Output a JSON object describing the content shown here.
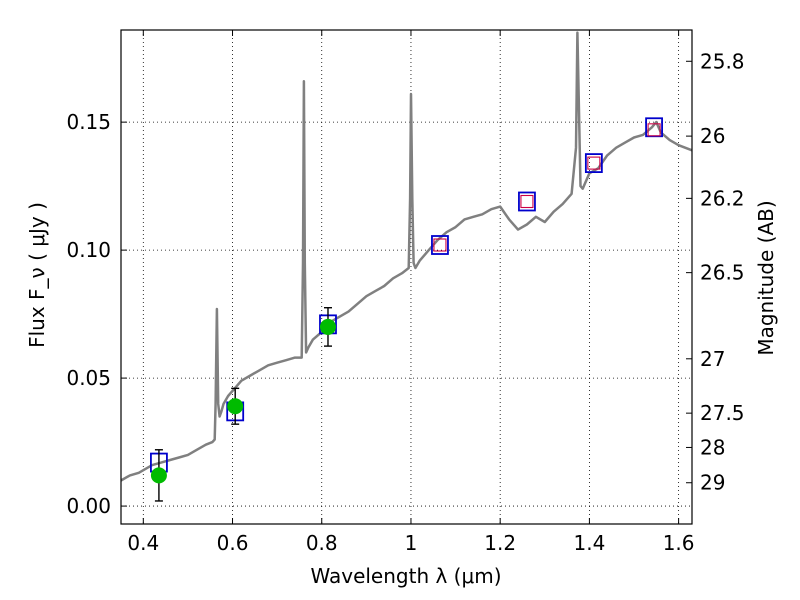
{
  "chart_data": {
    "type": "line",
    "xlabel": "Wavelength  λ (μm)",
    "ylabel": "Flux  F_ν  ( μJy )",
    "ylabel_right": "Magnitude (AB)",
    "xlim": [
      0.35,
      1.63
    ],
    "ylim": [
      -0.007,
      0.186
    ],
    "grid": true,
    "x_ticks": [
      0.4,
      0.6,
      0.8,
      1.0,
      1.2,
      1.4,
      1.6
    ],
    "x_tick_labels": [
      "0.4",
      "0.6",
      "0.8",
      "1",
      "1.2",
      "1.4",
      "1.6"
    ],
    "y_ticks": [
      0.0,
      0.05,
      0.1,
      0.15
    ],
    "y_tick_labels": [
      "0.00",
      "0.05",
      "0.10",
      "0.15"
    ],
    "mag_ticks": [
      25.8,
      26,
      26.2,
      26.5,
      27,
      27.5,
      28,
      29
    ],
    "mag_tick_labels": [
      "25.8",
      "26",
      "26.2",
      "26.5",
      "27",
      "27.5",
      "28",
      "29"
    ],
    "series": [
      {
        "kind": "model_spectrum",
        "color": "#808080",
        "x": [
          0.35,
          0.37,
          0.39,
          0.4,
          0.42,
          0.44,
          0.46,
          0.48,
          0.5,
          0.52,
          0.54,
          0.555,
          0.56,
          0.562,
          0.565,
          0.568,
          0.571,
          0.575,
          0.58,
          0.59,
          0.6,
          0.62,
          0.64,
          0.66,
          0.68,
          0.7,
          0.72,
          0.74,
          0.755,
          0.758,
          0.76,
          0.762,
          0.765,
          0.77,
          0.78,
          0.8,
          0.82,
          0.84,
          0.86,
          0.88,
          0.9,
          0.92,
          0.94,
          0.96,
          0.98,
          0.995,
          0.998,
          1.0,
          1.003,
          1.006,
          1.01,
          1.02,
          1.04,
          1.06,
          1.08,
          1.1,
          1.12,
          1.14,
          1.16,
          1.18,
          1.2,
          1.22,
          1.24,
          1.26,
          1.28,
          1.3,
          1.32,
          1.34,
          1.36,
          1.37,
          1.373,
          1.376,
          1.38,
          1.385,
          1.39,
          1.4,
          1.42,
          1.44,
          1.46,
          1.48,
          1.5,
          1.52,
          1.54,
          1.55,
          1.56,
          1.58,
          1.6,
          1.63
        ],
        "y": [
          0.01,
          0.012,
          0.013,
          0.014,
          0.016,
          0.017,
          0.018,
          0.019,
          0.02,
          0.022,
          0.024,
          0.025,
          0.026,
          0.04,
          0.077,
          0.04,
          0.035,
          0.037,
          0.04,
          0.043,
          0.045,
          0.049,
          0.051,
          0.053,
          0.055,
          0.056,
          0.057,
          0.058,
          0.058,
          0.095,
          0.166,
          0.095,
          0.06,
          0.062,
          0.065,
          0.068,
          0.072,
          0.074,
          0.076,
          0.079,
          0.082,
          0.084,
          0.086,
          0.089,
          0.091,
          0.093,
          0.12,
          0.161,
          0.12,
          0.095,
          0.093,
          0.096,
          0.1,
          0.104,
          0.107,
          0.109,
          0.112,
          0.113,
          0.114,
          0.116,
          0.117,
          0.112,
          0.108,
          0.11,
          0.113,
          0.111,
          0.115,
          0.118,
          0.122,
          0.14,
          0.185,
          0.16,
          0.125,
          0.124,
          0.126,
          0.13,
          0.132,
          0.137,
          0.14,
          0.142,
          0.144,
          0.145,
          0.148,
          0.15,
          0.146,
          0.143,
          0.141,
          0.139
        ]
      },
      {
        "kind": "model_photometry",
        "marker": "open-square",
        "color": "#0000cc",
        "x": [
          0.435,
          0.606,
          0.814,
          1.065,
          1.26,
          1.41,
          1.545
        ],
        "y": [
          0.017,
          0.037,
          0.071,
          0.102,
          0.119,
          0.134,
          0.148
        ]
      },
      {
        "kind": "observed_photometry",
        "marker": "small-open-square",
        "color": "#cc0044",
        "x": [
          1.065,
          1.26,
          1.41,
          1.545
        ],
        "y": [
          0.102,
          0.119,
          0.134,
          0.147
        ]
      },
      {
        "kind": "observed_photometry",
        "marker": "filled-circle",
        "color": "#00bb00",
        "x": [
          0.435,
          0.606,
          0.814
        ],
        "y": [
          0.012,
          0.039,
          0.07
        ],
        "yerr": [
          0.01,
          0.007,
          0.0075
        ]
      }
    ]
  }
}
